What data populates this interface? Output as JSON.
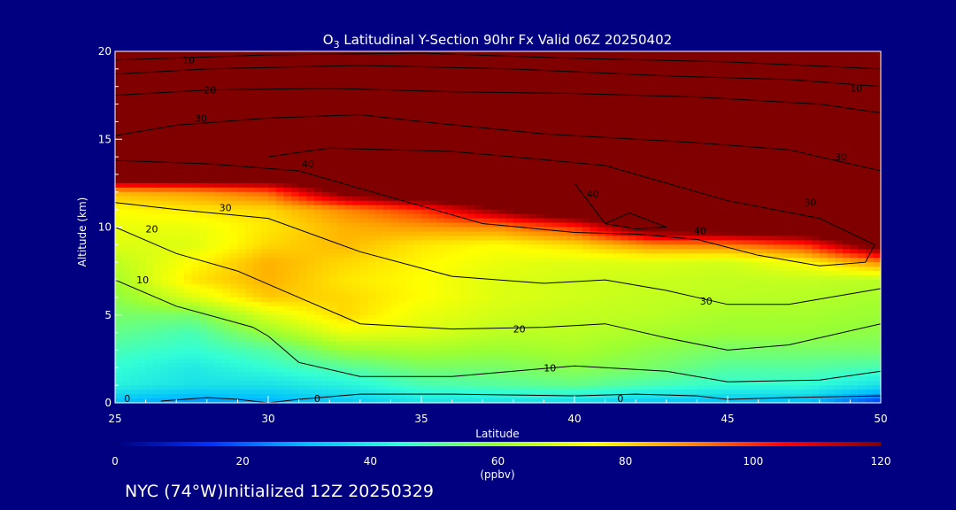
{
  "chart_data": {
    "type": "heatmap",
    "title_main": "O",
    "title_sub": "3",
    "title_rest": " Latitudinal Y-Section 90hr  Fx Valid 06Z 20250402",
    "xlabel": "Latitude",
    "ylabel": "Altitude (km)",
    "xlim": [
      25,
      50
    ],
    "ylim": [
      0,
      20
    ],
    "x_ticks": [
      "25",
      "30",
      "35",
      "40",
      "45",
      "50"
    ],
    "y_ticks": [
      "0",
      "5",
      "10",
      "15",
      "20"
    ],
    "colorbar": {
      "min": 0,
      "max": 120,
      "ticks": [
        "0",
        "20",
        "40",
        "60",
        "80",
        "100",
        "120"
      ],
      "units": "(ppbv)",
      "stops": [
        "#00007a",
        "#0033ff",
        "#00bfff",
        "#33ffd5",
        "#9aff33",
        "#ffff00",
        "#ff8a00",
        "#ff0000",
        "#800000"
      ]
    },
    "field": {
      "latitudes": [
        25,
        27.5,
        30,
        32.5,
        35,
        37.5,
        40,
        42.5,
        45,
        47.5,
        50
      ],
      "altitudes": [
        0,
        1,
        2,
        3,
        4,
        5,
        6,
        7,
        8,
        9,
        10,
        11,
        12,
        13,
        14,
        15,
        16,
        17,
        18,
        19,
        20
      ],
      "values": [
        [
          30,
          25,
          28,
          32,
          38,
          38,
          36,
          32,
          30,
          30,
          15
        ],
        [
          42,
          38,
          38,
          42,
          48,
          50,
          52,
          48,
          45,
          45,
          38
        ],
        [
          45,
          40,
          45,
          50,
          55,
          55,
          58,
          55,
          50,
          50,
          48
        ],
        [
          48,
          45,
          50,
          60,
          62,
          60,
          62,
          58,
          55,
          55,
          55
        ],
        [
          52,
          48,
          60,
          72,
          70,
          65,
          65,
          62,
          60,
          60,
          58
        ],
        [
          55,
          55,
          70,
          80,
          72,
          68,
          66,
          65,
          62,
          62,
          60
        ],
        [
          58,
          70,
          82,
          80,
          75,
          70,
          68,
          66,
          65,
          64,
          62
        ],
        [
          62,
          78,
          85,
          78,
          75,
          70,
          68,
          67,
          66,
          66,
          65
        ],
        [
          65,
          75,
          85,
          80,
          76,
          72,
          70,
          70,
          68,
          75,
          90
        ],
        [
          70,
          70,
          80,
          84,
          78,
          75,
          80,
          90,
          92,
          100,
          130
        ],
        [
          72,
          72,
          78,
          85,
          88,
          90,
          100,
          130,
          135,
          140,
          140
        ],
        [
          75,
          78,
          80,
          90,
          100,
          120,
          140,
          140,
          140,
          140,
          140
        ],
        [
          85,
          88,
          95,
          125,
          140,
          140,
          140,
          140,
          140,
          140,
          140
        ],
        [
          140,
          140,
          140,
          140,
          140,
          140,
          140,
          140,
          140,
          140,
          140
        ],
        [
          140,
          140,
          140,
          140,
          140,
          140,
          140,
          140,
          140,
          140,
          140
        ],
        [
          140,
          140,
          140,
          140,
          140,
          140,
          140,
          140,
          140,
          140,
          140
        ],
        [
          140,
          140,
          140,
          140,
          140,
          140,
          140,
          140,
          140,
          140,
          140
        ],
        [
          140,
          140,
          140,
          140,
          140,
          140,
          140,
          140,
          140,
          140,
          140
        ],
        [
          140,
          140,
          140,
          140,
          140,
          140,
          140,
          140,
          140,
          140,
          140
        ],
        [
          140,
          140,
          140,
          140,
          140,
          140,
          140,
          140,
          140,
          140,
          140
        ],
        [
          140,
          140,
          140,
          140,
          140,
          140,
          140,
          140,
          140,
          140,
          140
        ]
      ]
    },
    "contours": [
      {
        "label": "0",
        "points": [
          [
            26.5,
            0.1
          ],
          [
            28,
            0.3
          ],
          [
            29,
            0.2
          ],
          [
            30,
            0
          ],
          [
            31,
            0.2
          ],
          [
            33,
            0.5
          ],
          [
            36,
            0.5
          ],
          [
            40,
            0.4
          ],
          [
            42,
            0.5
          ],
          [
            44,
            0.4
          ],
          [
            45,
            0.2
          ],
          [
            47,
            0.3
          ],
          [
            50,
            0.4
          ]
        ]
      },
      {
        "label": "10",
        "points": [
          [
            25,
            7
          ],
          [
            27,
            5.5
          ],
          [
            29.5,
            4.3
          ],
          [
            30,
            3.8
          ],
          [
            31,
            2.3
          ],
          [
            33,
            1.5
          ],
          [
            36,
            1.5
          ],
          [
            38,
            1.8
          ],
          [
            40,
            2.1
          ],
          [
            43,
            1.8
          ],
          [
            45,
            1.2
          ],
          [
            48,
            1.3
          ],
          [
            50,
            1.8
          ]
        ]
      },
      {
        "label": "20",
        "points": [
          [
            25,
            10
          ],
          [
            27,
            8.5
          ],
          [
            29,
            7.5
          ],
          [
            31,
            6
          ],
          [
            33,
            4.5
          ],
          [
            36,
            4.2
          ],
          [
            39,
            4.3
          ],
          [
            41,
            4.5
          ],
          [
            43,
            3.7
          ],
          [
            45,
            3.0
          ],
          [
            47,
            3.3
          ],
          [
            50,
            4.5
          ]
        ]
      },
      {
        "label": "30",
        "points": [
          [
            25,
            11.4
          ],
          [
            27,
            11
          ],
          [
            30,
            10.5
          ],
          [
            33,
            8.6
          ],
          [
            36,
            7.2
          ],
          [
            39,
            6.8
          ],
          [
            41,
            7.0
          ],
          [
            43,
            6.4
          ],
          [
            45,
            5.6
          ],
          [
            47,
            5.6
          ],
          [
            50,
            6.5
          ]
        ]
      },
      {
        "label": "40",
        "points": [
          [
            25,
            13.8
          ],
          [
            28,
            13.6
          ],
          [
            31,
            13.2
          ],
          [
            34,
            11.7
          ],
          [
            37,
            10.2
          ],
          [
            40,
            9.7
          ],
          [
            42,
            9.6
          ],
          [
            44,
            9.3
          ],
          [
            46,
            8.4
          ],
          [
            48,
            7.8
          ],
          [
            49.5,
            8.0
          ],
          [
            49.8,
            9.0
          ],
          [
            48,
            10.5
          ],
          [
            45,
            11.5
          ],
          [
            43,
            12.5
          ],
          [
            41,
            13.5
          ],
          [
            38,
            14.0
          ],
          [
            36,
            14.3
          ],
          [
            32,
            14.5
          ],
          [
            30,
            14.0
          ]
        ]
      },
      {
        "label": "40",
        "points": [
          [
            40,
            12.5
          ],
          [
            41,
            10.2
          ],
          [
            42,
            9.9
          ],
          [
            43,
            10.0
          ],
          [
            41.8,
            10.8
          ],
          [
            41,
            10.2
          ]
        ]
      },
      {
        "label": "30",
        "points": [
          [
            25,
            15.2
          ],
          [
            27,
            15.8
          ],
          [
            30,
            16.2
          ],
          [
            33,
            16.4
          ],
          [
            35,
            16.0
          ],
          [
            39,
            15.3
          ],
          [
            44,
            14.8
          ],
          [
            47,
            14.4
          ],
          [
            50,
            13.2
          ]
        ]
      },
      {
        "label": "20",
        "points": [
          [
            25,
            17.5
          ],
          [
            28,
            17.8
          ],
          [
            32,
            17.9
          ],
          [
            36,
            17.7
          ],
          [
            40,
            17.6
          ],
          [
            44,
            17.4
          ],
          [
            48,
            17.0
          ],
          [
            50,
            16.5
          ]
        ]
      },
      {
        "label": "10",
        "points": [
          [
            25,
            18.7
          ],
          [
            28,
            19.0
          ],
          [
            33,
            19.2
          ],
          [
            38,
            19.0
          ],
          [
            43,
            18.6
          ],
          [
            47,
            18.4
          ],
          [
            50,
            18.0
          ]
        ]
      },
      {
        "label": "",
        "points": [
          [
            25,
            19.5
          ],
          [
            30,
            19.8
          ],
          [
            35,
            19.9
          ],
          [
            40,
            19.6
          ],
          [
            45,
            19.4
          ],
          [
            50,
            19.0
          ]
        ]
      }
    ],
    "contour_labels": [
      {
        "text": "0",
        "x": 25.4,
        "y": 0.25
      },
      {
        "text": "0",
        "x": 31.6,
        "y": 0.25
      },
      {
        "text": "0",
        "x": 41.5,
        "y": 0.25
      },
      {
        "text": "10",
        "x": 25.9,
        "y": 7.0
      },
      {
        "text": "10",
        "x": 39.2,
        "y": 2.0
      },
      {
        "text": "20",
        "x": 26.2,
        "y": 9.9
      },
      {
        "text": "20",
        "x": 38.2,
        "y": 4.2
      },
      {
        "text": "30",
        "x": 28.6,
        "y": 11.1
      },
      {
        "text": "30",
        "x": 44.3,
        "y": 5.8
      },
      {
        "text": "40",
        "x": 31.3,
        "y": 13.6
      },
      {
        "text": "40",
        "x": 40.6,
        "y": 11.9
      },
      {
        "text": "40",
        "x": 44.1,
        "y": 9.8
      },
      {
        "text": "30",
        "x": 27.8,
        "y": 16.2
      },
      {
        "text": "30",
        "x": 47.7,
        "y": 11.4
      },
      {
        "text": "30",
        "x": 48.7,
        "y": 14.0
      },
      {
        "text": "20",
        "x": 28.1,
        "y": 17.8
      },
      {
        "text": "10",
        "x": 27.4,
        "y": 19.5
      },
      {
        "text": "10",
        "x": 49.2,
        "y": 17.9
      }
    ]
  },
  "footer": {
    "location": "NYC (74°W)Initialized 12Z 20250329"
  }
}
